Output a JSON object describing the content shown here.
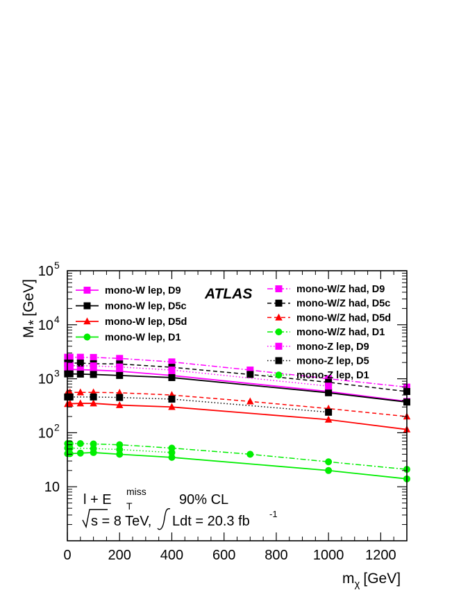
{
  "chart_data": {
    "type": "line",
    "y_scale": "log",
    "xlim": [
      0,
      1300
    ],
    "ylim": [
      1,
      100000
    ],
    "xlabel": "m",
    "xlabel_sub": "χ",
    "xlabel_unit": "[GeV]",
    "ylabel": "M",
    "ylabel_sub": "*",
    "ylabel_unit": "[GeV]",
    "x_ticks": [
      "0",
      "200",
      "400",
      "600",
      "800",
      "1000",
      "1200"
    ],
    "y_ticks": [
      {
        "base": "10",
        "exp": "",
        "value": 10
      },
      {
        "base": "10",
        "exp": "2",
        "value": 100
      },
      {
        "base": "10",
        "exp": "3",
        "value": 1000
      },
      {
        "base": "10",
        "exp": "4",
        "value": 10000
      },
      {
        "base": "10",
        "exp": "5",
        "value": 100000
      }
    ],
    "experiment_label": "ATLAS",
    "annotations": {
      "channel": "l + E",
      "channel_sub": "T",
      "channel_sup": "miss",
      "cl": "90% CL",
      "energy": "s = 8 TeV,",
      "lumi": "Ldt = 20.3 fb",
      "lumi_sup": "-1"
    },
    "series": [
      {
        "name": "mono-W lep, D9",
        "color": "#ff00ff",
        "style": "solid",
        "marker": "square",
        "x": [
          1,
          10,
          50,
          100,
          200,
          400,
          1000,
          1300
        ],
        "y": [
          1500,
          1490,
          1470,
          1450,
          1380,
          1150,
          580,
          380
        ]
      },
      {
        "name": "mono-W lep, D5c",
        "color": "#000000",
        "style": "solid",
        "marker": "square",
        "x": [
          1,
          10,
          50,
          100,
          200,
          400,
          1000,
          1300
        ],
        "y": [
          1230,
          1230,
          1220,
          1200,
          1150,
          1050,
          550,
          370
        ]
      },
      {
        "name": "mono-W lep, D5d",
        "color": "#ff0000",
        "style": "solid",
        "marker": "triangle",
        "x": [
          1,
          10,
          50,
          100,
          200,
          400,
          1000,
          1300
        ],
        "y": [
          340,
          345,
          350,
          350,
          325,
          300,
          175,
          115
        ]
      },
      {
        "name": "mono-W lep, D1",
        "color": "#00ee00",
        "style": "solid",
        "marker": "circle",
        "x": [
          1,
          10,
          50,
          100,
          200,
          400,
          1000,
          1300
        ],
        "y": [
          41,
          41,
          42,
          43,
          40,
          35,
          20,
          14
        ]
      },
      {
        "name": "mono-W/Z had, D9",
        "color": "#ff00ff",
        "style": "dashdot",
        "marker": "square",
        "x": [
          1,
          10,
          50,
          100,
          200,
          400,
          700,
          1000,
          1300
        ],
        "y": [
          2500,
          2500,
          2500,
          2480,
          2380,
          2050,
          1450,
          1000,
          700
        ]
      },
      {
        "name": "mono-W/Z had, D5c",
        "color": "#000000",
        "style": "dashed",
        "marker": "square",
        "x": [
          1,
          10,
          50,
          100,
          200,
          400,
          700,
          1000,
          1300
        ],
        "y": [
          1950,
          1950,
          1950,
          1900,
          1880,
          1630,
          1200,
          860,
          580
        ]
      },
      {
        "name": "mono-W/Z had, D5d",
        "color": "#ff0000",
        "style": "dashed",
        "marker": "triangle",
        "x": [
          1,
          10,
          50,
          100,
          200,
          400,
          700,
          1000,
          1300
        ],
        "y": [
          560,
          560,
          560,
          560,
          550,
          500,
          380,
          280,
          200
        ]
      },
      {
        "name": "mono-W/Z had, D1",
        "color": "#00ee00",
        "style": "dashdot",
        "marker": "circle",
        "x": [
          1,
          10,
          50,
          100,
          200,
          400,
          700,
          1000,
          1300
        ],
        "y": [
          63,
          63,
          63,
          62,
          60,
          52,
          40,
          29,
          21
        ]
      },
      {
        "name": "mono-Z lep, D9",
        "color": "#ff00ff",
        "style": "dotted",
        "marker": "square",
        "x": [
          1,
          10,
          100,
          200,
          400,
          1000
        ],
        "y": [
          1750,
          1750,
          1730,
          1650,
          1450,
          730
        ]
      },
      {
        "name": "mono-Z lep, D5",
        "color": "#000000",
        "style": "dotted",
        "marker": "square",
        "x": [
          1,
          10,
          100,
          200,
          400,
          1000
        ],
        "y": [
          460,
          460,
          460,
          450,
          420,
          240
        ]
      },
      {
        "name": "mono-Z lep, D1",
        "color": "#00ee00",
        "style": "dotted",
        "marker": "circle",
        "x": [
          1,
          10,
          100,
          200,
          400,
          1000
        ],
        "y": [
          52,
          52,
          51,
          49,
          43,
          null
        ]
      }
    ]
  }
}
